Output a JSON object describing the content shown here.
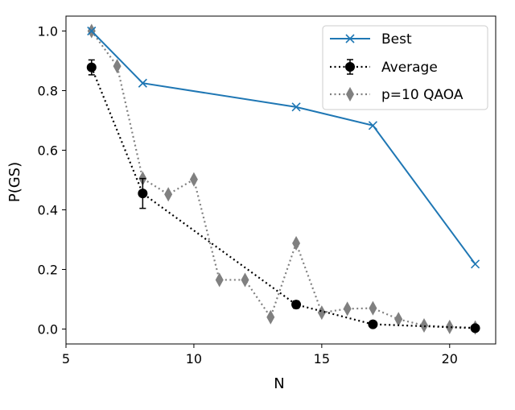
{
  "chart_data": {
    "type": "line",
    "title": "",
    "xlabel": "N",
    "ylabel": "P(GS)",
    "xlim": [
      5,
      21.8
    ],
    "ylim": [
      -0.05,
      1.05
    ],
    "xticks": [
      5,
      10,
      15,
      20
    ],
    "yticks": [
      0.0,
      0.2,
      0.4,
      0.6,
      0.8,
      1.0
    ],
    "xtick_labels": [
      "5",
      "10",
      "15",
      "20"
    ],
    "ytick_labels": [
      "0.0",
      "0.2",
      "0.4",
      "0.6",
      "0.8",
      "1.0"
    ],
    "grid": false,
    "legend_position": "top-right",
    "series": [
      {
        "name": "Best",
        "style": "solid",
        "marker": "x",
        "color": "#1f77b4",
        "x": [
          6,
          8,
          14,
          17,
          21
        ],
        "y": [
          1.0,
          0.825,
          0.745,
          0.683,
          0.218
        ]
      },
      {
        "name": "Average",
        "style": "dotted",
        "marker": "circle",
        "color": "#000000",
        "x": [
          6,
          8,
          14,
          17,
          21
        ],
        "y": [
          0.878,
          0.455,
          0.082,
          0.016,
          0.003
        ],
        "yerr": [
          0.025,
          0.05,
          0.012,
          0.004,
          0.002
        ]
      },
      {
        "name": "p=10 QAOA",
        "style": "dotted",
        "marker": "diamond",
        "color": "#808080",
        "x": [
          6,
          7,
          8,
          9,
          10,
          11,
          12,
          13,
          14,
          15,
          16,
          17,
          18,
          19,
          20,
          21
        ],
        "y": [
          1.0,
          0.882,
          0.505,
          0.452,
          0.502,
          0.165,
          0.165,
          0.04,
          0.288,
          0.055,
          0.068,
          0.07,
          0.033,
          0.012,
          0.007,
          0.005
        ]
      }
    ]
  }
}
